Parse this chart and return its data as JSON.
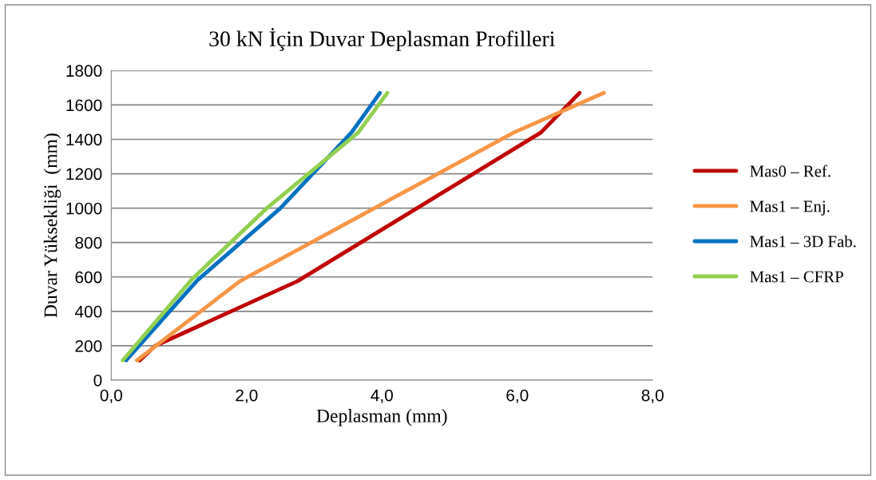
{
  "chart_data": {
    "type": "line",
    "title": "30 kN İçin Duvar Deplasman Profilleri",
    "xlabel": "Deplasman (mm)",
    "ylabel": "Duvar Yüksekliği  (mm)",
    "xlim": [
      0,
      8
    ],
    "xticks": [
      {
        "value": 0,
        "label": "0,0"
      },
      {
        "value": 2,
        "label": "2,0"
      },
      {
        "value": 4,
        "label": "4,0"
      },
      {
        "value": 6,
        "label": "6,0"
      },
      {
        "value": 8,
        "label": "8,0"
      }
    ],
    "ylim": [
      0,
      1800
    ],
    "yticks": [
      0,
      200,
      400,
      600,
      800,
      1000,
      1200,
      1400,
      1600,
      1800
    ],
    "grid": "y",
    "legend": "right",
    "marker": "none",
    "line_style": "solid",
    "series": [
      {
        "name": "Mas0 – Ref.",
        "color": "#c00000",
        "x": [
          0.42,
          0.65,
          2.75,
          6.35,
          6.92
        ],
        "values": [
          115,
          200,
          575,
          1440,
          1670
        ]
      },
      {
        "name": "Mas1 – Enj.",
        "color": "#f79646",
        "x": [
          0.38,
          1.9,
          5.95,
          7.28
        ],
        "values": [
          115,
          575,
          1440,
          1670
        ]
      },
      {
        "name": "Mas1 – 3D Fab.",
        "color": "#0070c0",
        "x": [
          0.22,
          1.27,
          2.5,
          3.55,
          3.97
        ],
        "values": [
          115,
          580,
          1000,
          1440,
          1670
        ]
      },
      {
        "name": "Mas1 – CFRP",
        "color": "#92d050",
        "x": [
          0.17,
          1.2,
          2.3,
          3.65,
          4.08
        ],
        "values": [
          115,
          590,
          1000,
          1440,
          1670
        ]
      }
    ]
  }
}
